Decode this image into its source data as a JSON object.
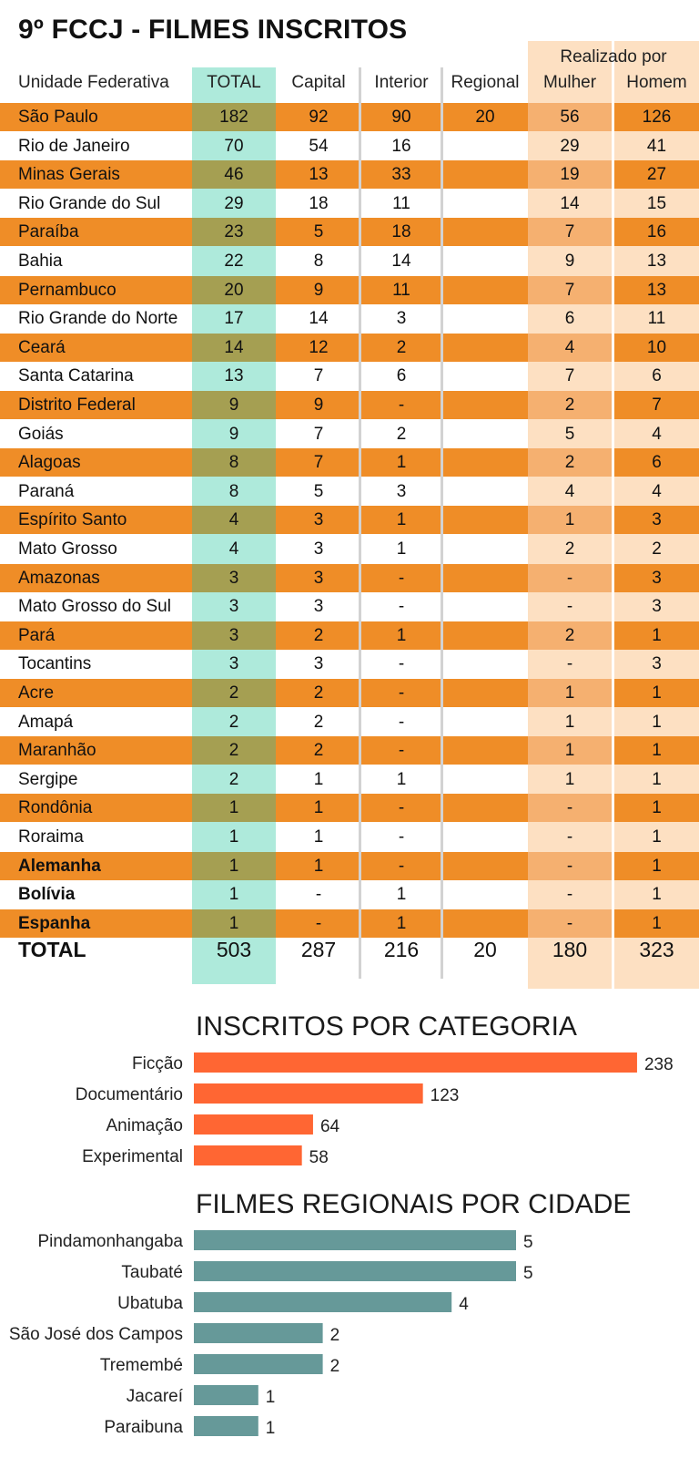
{
  "title": "9º FCCJ - FILMES INSCRITOS",
  "table": {
    "group_header": "Realizado por",
    "columns": [
      "Unidade Federativa",
      "TOTAL",
      "Capital",
      "Interior",
      "Regional",
      "Mulher",
      "Homem"
    ],
    "rows": [
      {
        "name": "São Paulo",
        "total": "182",
        "capital": "92",
        "interior": "90",
        "regional": "20",
        "mulher": "56",
        "homem": "126",
        "bold": false
      },
      {
        "name": "Rio de Janeiro",
        "total": "70",
        "capital": "54",
        "interior": "16",
        "regional": "",
        "mulher": "29",
        "homem": "41",
        "bold": false
      },
      {
        "name": "Minas Gerais",
        "total": "46",
        "capital": "13",
        "interior": "33",
        "regional": "",
        "mulher": "19",
        "homem": "27",
        "bold": false
      },
      {
        "name": "Rio Grande do Sul",
        "total": "29",
        "capital": "18",
        "interior": "11",
        "regional": "",
        "mulher": "14",
        "homem": "15",
        "bold": false
      },
      {
        "name": "Paraíba",
        "total": "23",
        "capital": "5",
        "interior": "18",
        "regional": "",
        "mulher": "7",
        "homem": "16",
        "bold": false
      },
      {
        "name": "Bahia",
        "total": "22",
        "capital": "8",
        "interior": "14",
        "regional": "",
        "mulher": "9",
        "homem": "13",
        "bold": false
      },
      {
        "name": "Pernambuco",
        "total": "20",
        "capital": "9",
        "interior": "11",
        "regional": "",
        "mulher": "7",
        "homem": "13",
        "bold": false
      },
      {
        "name": "Rio Grande do Norte",
        "total": "17",
        "capital": "14",
        "interior": "3",
        "regional": "",
        "mulher": "6",
        "homem": "11",
        "bold": false
      },
      {
        "name": "Ceará",
        "total": "14",
        "capital": "12",
        "interior": "2",
        "regional": "",
        "mulher": "4",
        "homem": "10",
        "bold": false
      },
      {
        "name": "Santa Catarina",
        "total": "13",
        "capital": "7",
        "interior": "6",
        "regional": "",
        "mulher": "7",
        "homem": "6",
        "bold": false
      },
      {
        "name": "Distrito Federal",
        "total": "9",
        "capital": "9",
        "interior": "-",
        "regional": "",
        "mulher": "2",
        "homem": "7",
        "bold": false
      },
      {
        "name": "Goiás",
        "total": "9",
        "capital": "7",
        "interior": "2",
        "regional": "",
        "mulher": "5",
        "homem": "4",
        "bold": false
      },
      {
        "name": "Alagoas",
        "total": "8",
        "capital": "7",
        "interior": "1",
        "regional": "",
        "mulher": "2",
        "homem": "6",
        "bold": false
      },
      {
        "name": "Paraná",
        "total": "8",
        "capital": "5",
        "interior": "3",
        "regional": "",
        "mulher": "4",
        "homem": "4",
        "bold": false
      },
      {
        "name": "Espírito Santo",
        "total": "4",
        "capital": "3",
        "interior": "1",
        "regional": "",
        "mulher": "1",
        "homem": "3",
        "bold": false
      },
      {
        "name": "Mato Grosso",
        "total": "4",
        "capital": "3",
        "interior": "1",
        "regional": "",
        "mulher": "2",
        "homem": "2",
        "bold": false
      },
      {
        "name": "Amazonas",
        "total": "3",
        "capital": "3",
        "interior": "-",
        "regional": "",
        "mulher": "-",
        "homem": "3",
        "bold": false
      },
      {
        "name": "Mato Grosso do Sul",
        "total": "3",
        "capital": "3",
        "interior": "-",
        "regional": "",
        "mulher": "-",
        "homem": "3",
        "bold": false
      },
      {
        "name": "Pará",
        "total": "3",
        "capital": "2",
        "interior": "1",
        "regional": "",
        "mulher": "2",
        "homem": "1",
        "bold": false
      },
      {
        "name": "Tocantins",
        "total": "3",
        "capital": "3",
        "interior": "-",
        "regional": "",
        "mulher": "-",
        "homem": "3",
        "bold": false
      },
      {
        "name": "Acre",
        "total": "2",
        "capital": "2",
        "interior": "-",
        "regional": "",
        "mulher": "1",
        "homem": "1",
        "bold": false
      },
      {
        "name": "Amapá",
        "total": "2",
        "capital": "2",
        "interior": "-",
        "regional": "",
        "mulher": "1",
        "homem": "1",
        "bold": false
      },
      {
        "name": "Maranhão",
        "total": "2",
        "capital": "2",
        "interior": "-",
        "regional": "",
        "mulher": "1",
        "homem": "1",
        "bold": false
      },
      {
        "name": "Sergipe",
        "total": "2",
        "capital": "1",
        "interior": "1",
        "regional": "",
        "mulher": "1",
        "homem": "1",
        "bold": false
      },
      {
        "name": "Rondônia",
        "total": "1",
        "capital": "1",
        "interior": "-",
        "regional": "",
        "mulher": "-",
        "homem": "1",
        "bold": false
      },
      {
        "name": "Roraima",
        "total": "1",
        "capital": "1",
        "interior": "-",
        "regional": "",
        "mulher": "-",
        "homem": "1",
        "bold": false
      },
      {
        "name": "Alemanha",
        "total": "1",
        "capital": "1",
        "interior": "-",
        "regional": "",
        "mulher": "-",
        "homem": "1",
        "bold": true
      },
      {
        "name": "Bolívia",
        "total": "1",
        "capital": "-",
        "interior": "1",
        "regional": "",
        "mulher": "-",
        "homem": "1",
        "bold": true
      },
      {
        "name": "Espanha",
        "total": "1",
        "capital": "-",
        "interior": "1",
        "regional": "",
        "mulher": "-",
        "homem": "1",
        "bold": true
      }
    ],
    "totals": {
      "name": "TOTAL",
      "total": "503",
      "capital": "287",
      "interior": "216",
      "regional": "20",
      "mulher": "180",
      "homem": "323"
    }
  },
  "colors": {
    "row_orange": "#ef8d27",
    "total_column": "#aeeadb",
    "total_column_on_orange": "#a59f52",
    "gender_columns": "#fde0c2",
    "gender_women_on_orange": "#f5b070",
    "category_bars": "#ff6633",
    "city_bars": "#669999"
  },
  "chart_data": [
    {
      "type": "bar",
      "orientation": "horizontal",
      "title": "INSCRITOS POR CATEGORIA",
      "categories": [
        "Ficção",
        "Documentário",
        "Animação",
        "Experimental"
      ],
      "values": [
        238,
        123,
        64,
        58
      ],
      "data_labels": true,
      "grid": false
    },
    {
      "type": "bar",
      "orientation": "horizontal",
      "title": "FILMES REGIONAIS POR CIDADE",
      "categories": [
        "Pindamonhangaba",
        "Taubaté",
        "Ubatuba",
        "São José dos Campos",
        "Tremembé",
        "Jacareí",
        "Paraibuna"
      ],
      "values": [
        5,
        5,
        4,
        2,
        2,
        1,
        1
      ],
      "data_labels": true,
      "grid": false
    }
  ]
}
